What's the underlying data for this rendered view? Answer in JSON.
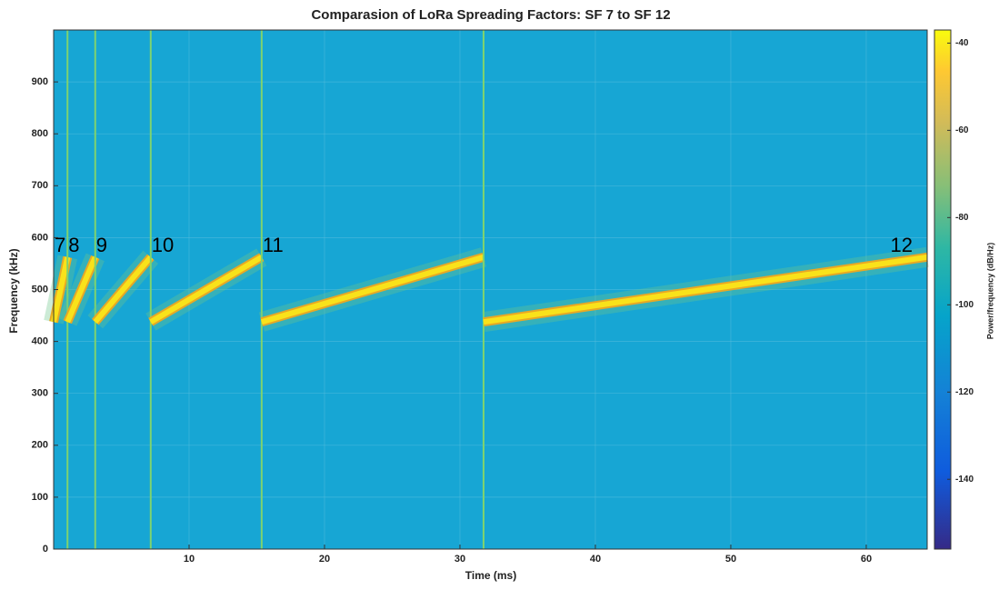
{
  "chart_data": {
    "type": "spectrogram",
    "title": "Comparasion of LoRa Spreading Factors: SF 7 to SF 12",
    "xlabel": "Time (ms)",
    "ylabel": "Frequency (kHz)",
    "xlim": [
      0,
      64.5
    ],
    "ylim": [
      0,
      1000
    ],
    "xticks": [
      10,
      20,
      30,
      40,
      50,
      60
    ],
    "yticks": [
      0,
      100,
      200,
      300,
      400,
      500,
      600,
      700,
      800,
      900
    ],
    "grid": true,
    "background_color": "#17a6d4",
    "chirp_color": "#f9e21a",
    "chirps": [
      {
        "label": "7",
        "t": [
          0,
          1.024
        ],
        "f": [
          437.5,
          562.5
        ]
      },
      {
        "label": "8",
        "t": [
          1.024,
          3.072
        ],
        "f": [
          437.5,
          562.5
        ]
      },
      {
        "label": "9",
        "t": [
          3.072,
          7.168
        ],
        "f": [
          437.5,
          562.5
        ]
      },
      {
        "label": "10",
        "t": [
          7.168,
          15.36
        ],
        "f": [
          437.5,
          562.5
        ]
      },
      {
        "label": "11",
        "t": [
          15.36,
          31.744
        ],
        "f": [
          437.5,
          562.5
        ]
      },
      {
        "label": "12",
        "t": [
          31.744,
          64.5
        ],
        "f": [
          437.5,
          562.5
        ]
      }
    ],
    "colorbar": {
      "label": "Power/frequency (dB/Hz)",
      "colormap": "parula",
      "clim": [
        -156,
        -37
      ],
      "ticks": [
        -140,
        -120,
        -100,
        -80,
        -60,
        -40
      ]
    }
  }
}
